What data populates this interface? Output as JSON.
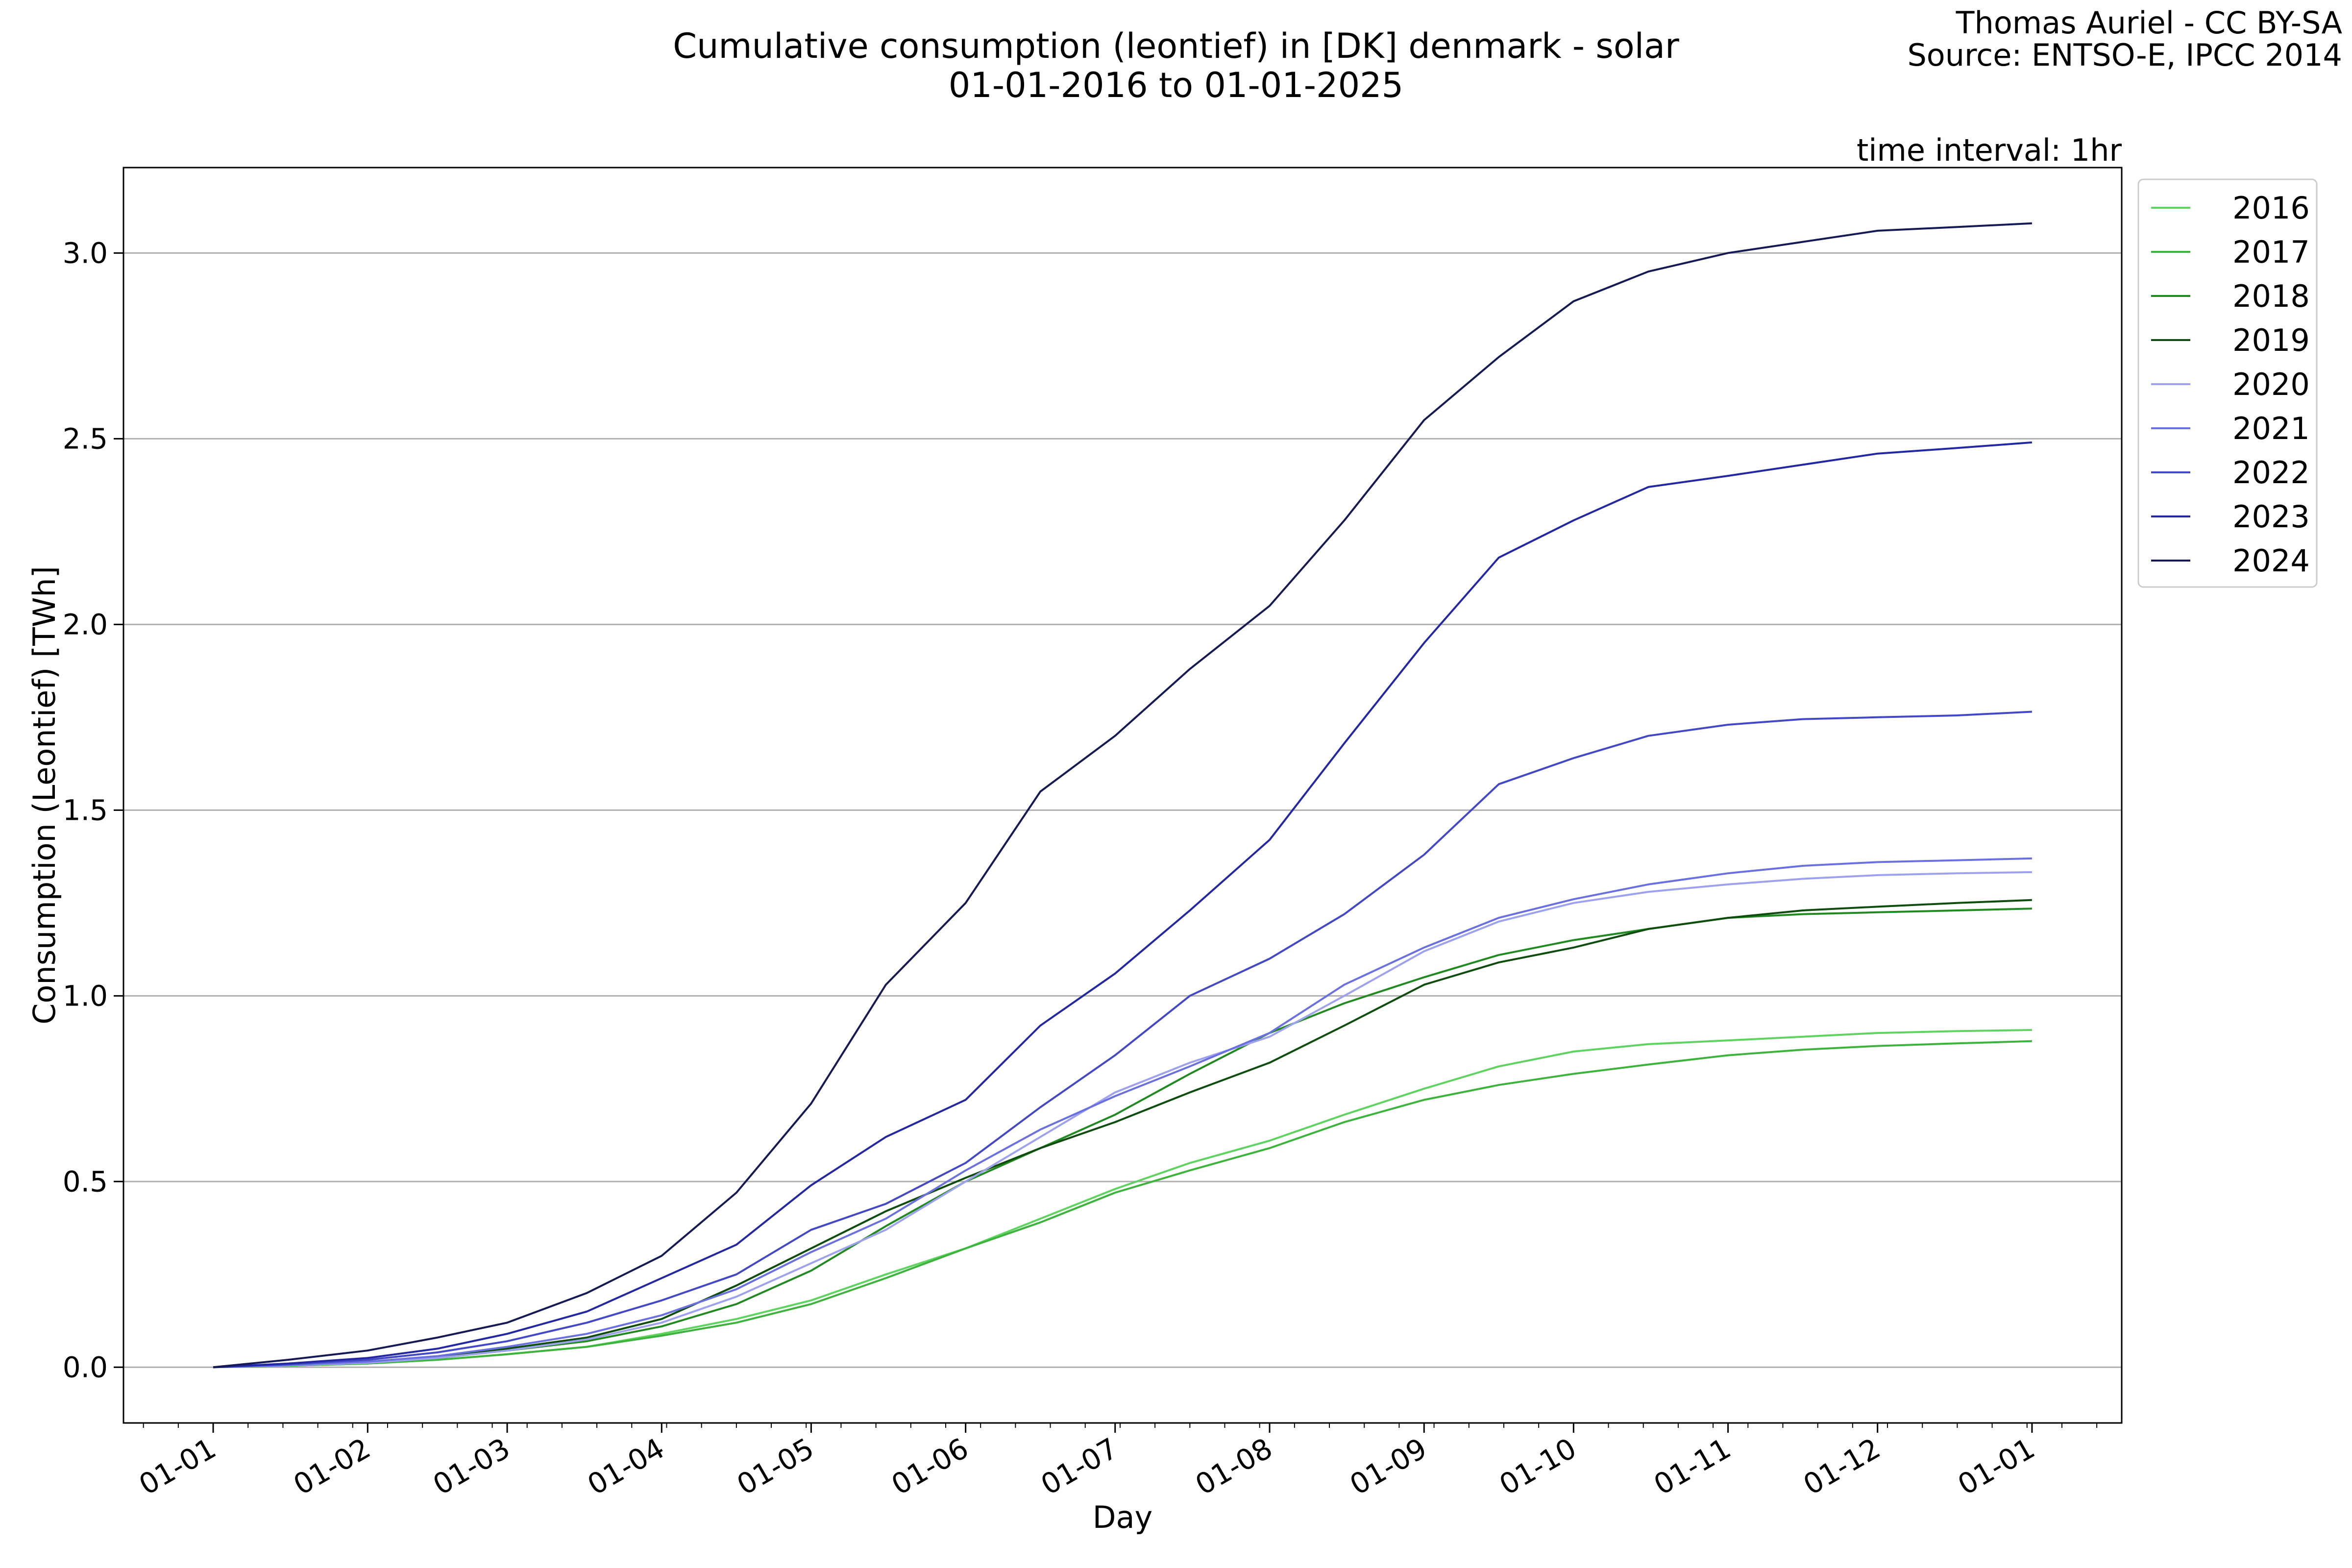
{
  "title_line1": "Cumulative consumption (leontief) in [DK] denmark - solar",
  "title_line2": "01-01-2016 to 01-01-2025",
  "credit_line1": "Thomas Auriel - CC BY-SA",
  "credit_line2": "Source: ENTSO-E, IPCC 2014",
  "interval_note": "time interval: 1hr",
  "chart_data": {
    "type": "line",
    "xlabel": "Day",
    "ylabel": "Consumption (Leontief) [TWh]",
    "x_tick_labels": [
      "01-01",
      "01-02",
      "01-03",
      "01-04",
      "01-05",
      "01-06",
      "01-07",
      "01-08",
      "01-09",
      "01-10",
      "01-11",
      "01-12",
      "01-01"
    ],
    "x_tick_days": [
      0,
      31,
      59,
      90,
      120,
      151,
      181,
      212,
      243,
      273,
      304,
      334,
      365
    ],
    "y_ticks": [
      0.0,
      0.5,
      1.0,
      1.5,
      2.0,
      2.5,
      3.0
    ],
    "y_tick_labels": [
      "0.0",
      "0.5",
      "1.0",
      "1.5",
      "2.0",
      "2.5",
      "3.0"
    ],
    "xlim": [
      -18,
      383
    ],
    "ylim": [
      -0.15,
      3.23
    ],
    "grid": "horizontal",
    "legend_position": "right, outside",
    "x_days": [
      0,
      15,
      31,
      45,
      59,
      75,
      90,
      105,
      120,
      135,
      151,
      166,
      181,
      196,
      212,
      227,
      243,
      258,
      273,
      288,
      304,
      319,
      334,
      350,
      365
    ],
    "series": [
      {
        "name": "2016",
        "color": "#5fd35f",
        "values": [
          0,
          0.004,
          0.01,
          0.02,
          0.035,
          0.055,
          0.09,
          0.13,
          0.18,
          0.25,
          0.32,
          0.4,
          0.48,
          0.55,
          0.61,
          0.68,
          0.75,
          0.81,
          0.85,
          0.87,
          0.88,
          0.89,
          0.9,
          0.905,
          0.908
        ]
      },
      {
        "name": "2017",
        "color": "#3cb43c",
        "values": [
          0,
          0.004,
          0.01,
          0.02,
          0.035,
          0.055,
          0.085,
          0.12,
          0.17,
          0.24,
          0.32,
          0.39,
          0.47,
          0.53,
          0.59,
          0.66,
          0.72,
          0.76,
          0.79,
          0.815,
          0.84,
          0.855,
          0.865,
          0.872,
          0.878
        ]
      },
      {
        "name": "2018",
        "color": "#208a20",
        "values": [
          0,
          0.008,
          0.015,
          0.025,
          0.045,
          0.07,
          0.11,
          0.17,
          0.26,
          0.38,
          0.5,
          0.59,
          0.68,
          0.79,
          0.9,
          0.98,
          1.05,
          1.11,
          1.15,
          1.18,
          1.21,
          1.22,
          1.225,
          1.23,
          1.235
        ]
      },
      {
        "name": "2019",
        "color": "#0e4d0e",
        "values": [
          0,
          0.006,
          0.015,
          0.028,
          0.05,
          0.08,
          0.13,
          0.22,
          0.32,
          0.42,
          0.51,
          0.59,
          0.66,
          0.74,
          0.82,
          0.92,
          1.03,
          1.09,
          1.13,
          1.18,
          1.21,
          1.23,
          1.24,
          1.25,
          1.258
        ]
      },
      {
        "name": "2020",
        "color": "#9ea2ee",
        "values": [
          0,
          0.005,
          0.012,
          0.025,
          0.045,
          0.075,
          0.12,
          0.19,
          0.28,
          0.37,
          0.5,
          0.62,
          0.74,
          0.82,
          0.89,
          1.0,
          1.12,
          1.2,
          1.25,
          1.28,
          1.3,
          1.315,
          1.325,
          1.33,
          1.333
        ]
      },
      {
        "name": "2021",
        "color": "#6a70e0",
        "values": [
          0,
          0.006,
          0.015,
          0.03,
          0.055,
          0.09,
          0.14,
          0.21,
          0.31,
          0.4,
          0.53,
          0.64,
          0.73,
          0.81,
          0.9,
          1.03,
          1.13,
          1.21,
          1.26,
          1.3,
          1.33,
          1.35,
          1.36,
          1.365,
          1.37
        ]
      },
      {
        "name": "2022",
        "color": "#4248c6",
        "values": [
          0,
          0.008,
          0.02,
          0.04,
          0.07,
          0.12,
          0.18,
          0.25,
          0.37,
          0.44,
          0.55,
          0.7,
          0.84,
          1.0,
          1.1,
          1.22,
          1.38,
          1.57,
          1.64,
          1.7,
          1.73,
          1.745,
          1.75,
          1.755,
          1.765
        ]
      },
      {
        "name": "2023",
        "color": "#2328a2",
        "values": [
          0,
          0.01,
          0.025,
          0.05,
          0.09,
          0.15,
          0.24,
          0.33,
          0.49,
          0.62,
          0.72,
          0.92,
          1.06,
          1.23,
          1.42,
          1.68,
          1.95,
          2.18,
          2.28,
          2.37,
          2.4,
          2.43,
          2.46,
          2.475,
          2.49
        ]
      },
      {
        "name": "2024",
        "color": "#151a55",
        "values": [
          0,
          0.02,
          0.045,
          0.08,
          0.12,
          0.2,
          0.3,
          0.47,
          0.71,
          1.03,
          1.25,
          1.55,
          1.7,
          1.88,
          2.05,
          2.28,
          2.55,
          2.72,
          2.87,
          2.95,
          3.0,
          3.03,
          3.06,
          3.07,
          3.08
        ]
      }
    ]
  }
}
